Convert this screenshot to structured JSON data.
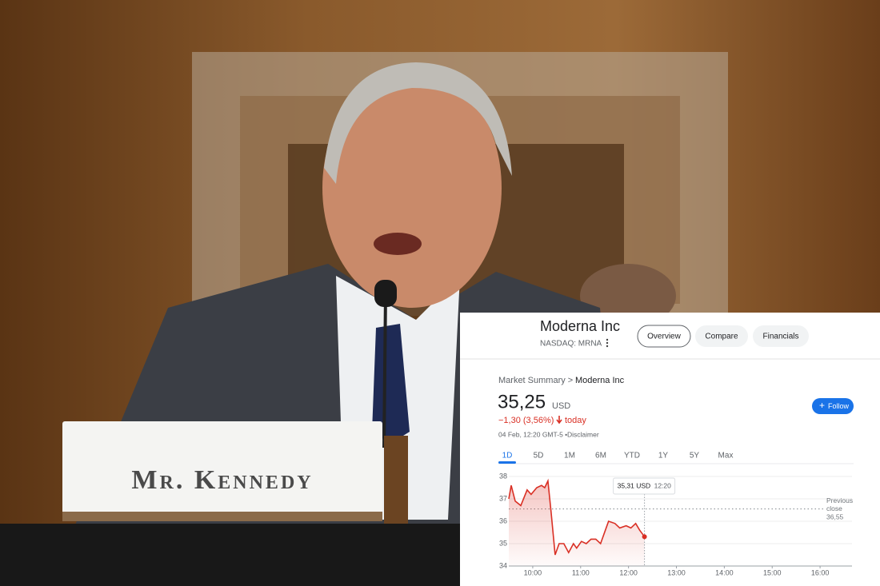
{
  "photo": {
    "nameplate": "Mr. Kennedy"
  },
  "widget": {
    "company": "Moderna Inc",
    "ticker": "NASDAQ: MRNA",
    "tabs": [
      "Overview",
      "Compare",
      "Financials"
    ],
    "breadcrumb": "Market Summary >",
    "breadcrumb_current": "Moderna Inc",
    "price": "35,25",
    "currency": "USD",
    "change": "−1,30 (3,56%)",
    "change_period": "today",
    "timestamp": "04 Feb, 12:20 GMT-5 •",
    "disclaimer": "Disclaimer",
    "follow": "Follow",
    "ranges": [
      "1D",
      "5D",
      "1M",
      "6M",
      "YTD",
      "1Y",
      "5Y",
      "Max"
    ],
    "tooltip_price": "35,31 USD",
    "tooltip_time": "12:20",
    "previous_close_title": "Previous close",
    "previous_close": "36,55"
  },
  "chart_data": {
    "type": "line",
    "x": [
      570,
      573,
      578,
      585,
      593,
      598,
      605,
      611,
      615,
      619,
      623,
      628,
      633,
      639,
      645,
      651,
      655,
      661,
      667,
      673,
      679,
      685,
      691,
      695,
      703,
      709,
      717,
      723,
      729,
      734,
      740
    ],
    "series": [
      {
        "name": "MRNA",
        "color": "#d93025",
        "values": [
          37.0,
          37.6,
          36.9,
          36.7,
          37.4,
          37.2,
          37.5,
          37.6,
          37.5,
          37.8,
          36.4,
          34.5,
          35.0,
          35.0,
          34.6,
          35.0,
          34.8,
          35.1,
          35.0,
          35.2,
          35.2,
          35.0,
          35.6,
          36.0,
          35.9,
          35.7,
          35.8,
          35.7,
          35.9,
          35.6,
          35.31
        ]
      }
    ],
    "xlim": [
      570,
      1000
    ],
    "xticks": [
      {
        "value": 600,
        "label": "10:00"
      },
      {
        "value": 660,
        "label": "11:00"
      },
      {
        "value": 720,
        "label": "12:00"
      },
      {
        "value": 780,
        "label": "13:00"
      },
      {
        "value": 840,
        "label": "14:00"
      },
      {
        "value": 900,
        "label": "15:00"
      },
      {
        "value": 960,
        "label": "16:00"
      }
    ],
    "ylim": [
      34,
      38
    ],
    "yticks": [
      34,
      35,
      36,
      37,
      38
    ],
    "reference_line": 36.55,
    "grid": true
  }
}
